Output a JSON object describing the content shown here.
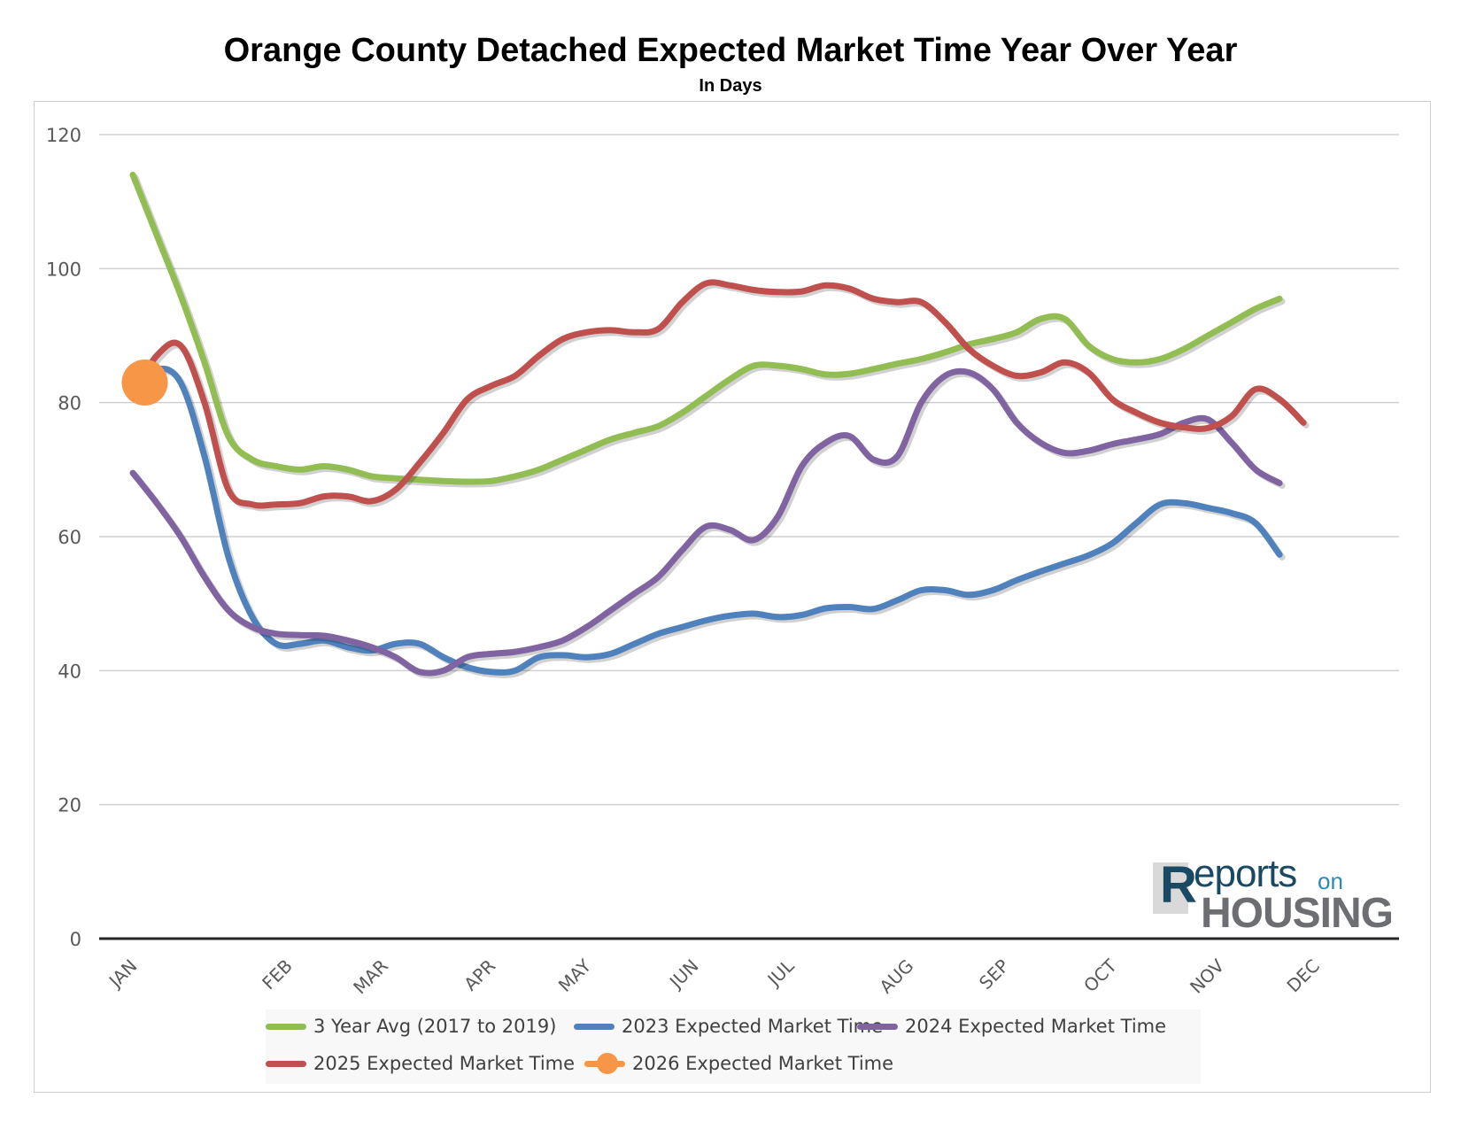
{
  "chart_data": {
    "type": "line",
    "title": "Orange County Detached Expected Market Time Year Over Year",
    "subtitle": "In Days",
    "ylim": [
      0,
      120
    ],
    "yticks": [
      0,
      20,
      40,
      60,
      80,
      100,
      120
    ],
    "grid": true,
    "legend_position": "bottom",
    "xlim": [
      0,
      52
    ],
    "x_tick_labels": [
      {
        "label": "JAN",
        "x": 0
      },
      {
        "label": "FEB",
        "x": 6.5
      },
      {
        "label": "MAR",
        "x": 10.5
      },
      {
        "label": "APR",
        "x": 15
      },
      {
        "label": "MAY",
        "x": 19
      },
      {
        "label": "JUN",
        "x": 23.5
      },
      {
        "label": "JUL",
        "x": 27.5
      },
      {
        "label": "AUG",
        "x": 32.5
      },
      {
        "label": "SEP",
        "x": 36.5
      },
      {
        "label": "OCT",
        "x": 41
      },
      {
        "label": "NOV",
        "x": 45.5
      },
      {
        "label": "DEC",
        "x": 49.5
      }
    ],
    "series": [
      {
        "name": "3 Year Avg (2017 to 2019)",
        "color": "#92bd52",
        "points": [
          [
            0,
            114
          ],
          [
            1,
            105
          ],
          [
            2,
            96
          ],
          [
            3,
            86
          ],
          [
            4,
            75
          ],
          [
            5,
            71.5
          ],
          [
            6,
            70.5
          ],
          [
            7,
            70
          ],
          [
            8,
            70.5
          ],
          [
            9,
            70
          ],
          [
            10,
            69
          ],
          [
            11,
            68.7
          ],
          [
            12,
            68.5
          ],
          [
            13,
            68.3
          ],
          [
            14,
            68.2
          ],
          [
            15,
            68.3
          ],
          [
            16,
            69
          ],
          [
            17,
            70
          ],
          [
            18,
            71.5
          ],
          [
            19,
            73
          ],
          [
            20,
            74.5
          ],
          [
            21,
            75.5
          ],
          [
            22,
            76.5
          ],
          [
            23,
            78.5
          ],
          [
            24,
            81
          ],
          [
            25,
            83.5
          ],
          [
            26,
            85.5
          ],
          [
            27,
            85.5
          ],
          [
            28,
            85
          ],
          [
            29,
            84.2
          ],
          [
            30,
            84.3
          ],
          [
            31,
            85
          ],
          [
            32,
            85.8
          ],
          [
            33,
            86.5
          ],
          [
            34,
            87.5
          ],
          [
            35,
            88.7
          ],
          [
            36,
            89.5
          ],
          [
            37,
            90.5
          ],
          [
            38,
            92.5
          ],
          [
            39,
            92.5
          ],
          [
            40,
            88.5
          ],
          [
            41,
            86.5
          ],
          [
            42,
            86
          ],
          [
            43,
            86.5
          ],
          [
            44,
            88
          ],
          [
            45,
            90
          ],
          [
            46,
            92
          ],
          [
            47,
            94
          ],
          [
            48,
            95.5
          ]
        ]
      },
      {
        "name": "2023 Expected Market Time",
        "color": "#4f81bd",
        "points": [
          [
            0,
            82
          ],
          [
            1,
            85
          ],
          [
            2,
            83
          ],
          [
            3,
            72
          ],
          [
            4,
            57
          ],
          [
            5,
            48
          ],
          [
            6,
            44
          ],
          [
            7,
            44
          ],
          [
            8,
            44.5
          ],
          [
            9,
            43.5
          ],
          [
            10,
            43
          ],
          [
            11,
            44
          ],
          [
            12,
            44
          ],
          [
            13,
            42
          ],
          [
            14,
            40.5
          ],
          [
            15,
            39.8
          ],
          [
            16,
            40
          ],
          [
            17,
            42
          ],
          [
            18,
            42.3
          ],
          [
            19,
            42
          ],
          [
            20,
            42.5
          ],
          [
            21,
            44
          ],
          [
            22,
            45.5
          ],
          [
            23,
            46.5
          ],
          [
            24,
            47.5
          ],
          [
            25,
            48.2
          ],
          [
            26,
            48.5
          ],
          [
            27,
            48
          ],
          [
            28,
            48.3
          ],
          [
            29,
            49.3
          ],
          [
            30,
            49.5
          ],
          [
            31,
            49.2
          ],
          [
            32,
            50.5
          ],
          [
            33,
            52
          ],
          [
            34,
            52
          ],
          [
            35,
            51.3
          ],
          [
            36,
            52
          ],
          [
            37,
            53.5
          ],
          [
            38,
            54.8
          ],
          [
            39,
            56
          ],
          [
            40,
            57.2
          ],
          [
            41,
            59
          ],
          [
            42,
            62
          ],
          [
            43,
            64.8
          ],
          [
            44,
            65
          ],
          [
            45,
            64.3
          ],
          [
            46,
            63.5
          ],
          [
            47,
            62
          ],
          [
            48,
            57.3
          ]
        ]
      },
      {
        "name": "2024 Expected Market Time",
        "color": "#8064a2",
        "points": [
          [
            0,
            69.5
          ],
          [
            1,
            65
          ],
          [
            2,
            60
          ],
          [
            3,
            54
          ],
          [
            4,
            49
          ],
          [
            5,
            46.5
          ],
          [
            6,
            45.5
          ],
          [
            7,
            45.3
          ],
          [
            8,
            45.2
          ],
          [
            9,
            44.5
          ],
          [
            10,
            43.5
          ],
          [
            11,
            42
          ],
          [
            12,
            39.8
          ],
          [
            13,
            40
          ],
          [
            14,
            42
          ],
          [
            15,
            42.5
          ],
          [
            16,
            42.8
          ],
          [
            17,
            43.5
          ],
          [
            18,
            44.5
          ],
          [
            19,
            46.5
          ],
          [
            20,
            49
          ],
          [
            21,
            51.5
          ],
          [
            22,
            54
          ],
          [
            23,
            58
          ],
          [
            24,
            61.5
          ],
          [
            25,
            61
          ],
          [
            26,
            59.5
          ],
          [
            27,
            63
          ],
          [
            28,
            70.5
          ],
          [
            29,
            74
          ],
          [
            30,
            75
          ],
          [
            31,
            71.5
          ],
          [
            32,
            72
          ],
          [
            33,
            80
          ],
          [
            34,
            84
          ],
          [
            35,
            84.5
          ],
          [
            36,
            82
          ],
          [
            37,
            77
          ],
          [
            38,
            74
          ],
          [
            39,
            72.5
          ],
          [
            40,
            72.8
          ],
          [
            41,
            73.8
          ],
          [
            42,
            74.5
          ],
          [
            43,
            75.3
          ],
          [
            44,
            77
          ],
          [
            45,
            77.5
          ],
          [
            46,
            74
          ],
          [
            47,
            70
          ],
          [
            48,
            68
          ]
        ]
      },
      {
        "name": "2025 Expected Market Time",
        "color": "#c0504d",
        "points": [
          [
            0,
            81
          ],
          [
            1,
            87
          ],
          [
            2,
            88.5
          ],
          [
            3,
            80
          ],
          [
            4,
            67
          ],
          [
            5,
            64.8
          ],
          [
            6,
            64.8
          ],
          [
            7,
            65
          ],
          [
            8,
            66
          ],
          [
            9,
            66
          ],
          [
            10,
            65.3
          ],
          [
            11,
            67
          ],
          [
            12,
            71
          ],
          [
            13,
            75.5
          ],
          [
            14,
            80.5
          ],
          [
            15,
            82.5
          ],
          [
            16,
            84
          ],
          [
            17,
            87
          ],
          [
            18,
            89.5
          ],
          [
            19,
            90.5
          ],
          [
            20,
            90.8
          ],
          [
            21,
            90.5
          ],
          [
            22,
            91
          ],
          [
            23,
            95
          ],
          [
            24,
            97.8
          ],
          [
            25,
            97.5
          ],
          [
            26,
            96.8
          ],
          [
            27,
            96.5
          ],
          [
            28,
            96.6
          ],
          [
            29,
            97.5
          ],
          [
            30,
            97
          ],
          [
            31,
            95.5
          ],
          [
            32,
            95
          ],
          [
            33,
            95
          ],
          [
            34,
            92
          ],
          [
            35,
            88
          ],
          [
            36,
            85.5
          ],
          [
            37,
            84
          ],
          [
            38,
            84.5
          ],
          [
            39,
            86
          ],
          [
            40,
            84.5
          ],
          [
            41,
            80.5
          ],
          [
            42,
            78.5
          ],
          [
            43,
            77
          ],
          [
            44,
            76.3
          ],
          [
            45,
            76.2
          ],
          [
            46,
            78
          ],
          [
            47,
            82
          ],
          [
            48,
            80.5
          ],
          [
            49,
            77
          ]
        ]
      },
      {
        "name": "2026 Expected Market Time",
        "color": "#f79646",
        "points": [
          [
            0.5,
            83
          ]
        ]
      }
    ]
  },
  "logo": {
    "r_letter": "R",
    "reports_word": "eports",
    "on_word": "on",
    "housing_word": "HOUSING"
  }
}
